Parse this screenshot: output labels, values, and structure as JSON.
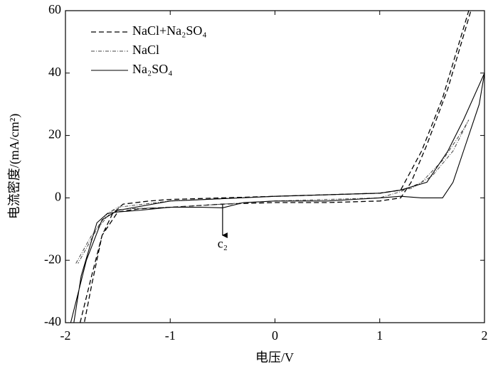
{
  "chart_data": {
    "type": "line",
    "xlabel": "电压/V",
    "ylabel": "电流密度/(mA/cm²)",
    "xlim": [
      -2,
      2
    ],
    "ylim": [
      -40,
      60
    ],
    "xticks": [
      -2,
      -1,
      0,
      1,
      2
    ],
    "yticks": [
      -40,
      -20,
      0,
      20,
      40,
      60
    ],
    "legend": "upper left",
    "annotations": [
      "c₂"
    ],
    "series": [
      {
        "name": "NaCl+Na₂SO₄",
        "color": "#000000",
        "linestyle": "dashed",
        "x": [
          -1.86,
          -1.75,
          -1.65,
          -1.55,
          -1.45,
          -1.2,
          -1,
          -0.5,
          0,
          0.5,
          1,
          1.2,
          1.4,
          1.6,
          1.85,
          1.87,
          1.65,
          1.45,
          1.3,
          1.2,
          1,
          0.5,
          0,
          -0.5,
          -1,
          -1.3,
          -1.5,
          -1.65,
          -1.75,
          -1.82
        ],
        "values": [
          -40,
          -25,
          -12,
          -5,
          -2,
          -1,
          -0.5,
          0,
          0.5,
          1,
          1.5,
          2.5,
          15,
          32,
          60,
          60,
          35,
          17,
          5,
          0,
          -1,
          -1.5,
          -1.5,
          -2,
          -3,
          -3.5,
          -4.5,
          -12,
          -28,
          -40
        ]
      },
      {
        "name": "NaCl",
        "color": "#444444",
        "linestyle": "dashdot",
        "x": [
          -1.9,
          -1.75,
          -1.6,
          -1.5,
          -1,
          0,
          1,
          1.3,
          1.5,
          1.7,
          1.85,
          1.8,
          1.6,
          1.4,
          1.2,
          1,
          0,
          -0.5,
          -1,
          -1.4,
          -1.55,
          -1.7,
          -1.88
        ],
        "values": [
          -21,
          -12,
          -5,
          -3,
          -1,
          0.5,
          1.5,
          3,
          7,
          15,
          25,
          22,
          12,
          5,
          2,
          0,
          -1,
          -2,
          -3,
          -3.5,
          -4,
          -10,
          -21
        ]
      },
      {
        "name": "Na₂SO₄",
        "color": "#000000",
        "linestyle": "solid",
        "x": [
          -1.95,
          -1.8,
          -1.65,
          -1.5,
          -1,
          0,
          1,
          1.2,
          1.45,
          1.65,
          1.8,
          2,
          1.95,
          1.8,
          1.7,
          1.6,
          1.4,
          1.2,
          1,
          0.5,
          0,
          -0.3,
          -0.5,
          -0.7,
          -1,
          -1.3,
          -1.5,
          -1.6,
          -1.7,
          -1.85,
          -1.92
        ],
        "values": [
          -40,
          -20,
          -7,
          -4,
          -1,
          0.5,
          1.5,
          2.5,
          5,
          15,
          25,
          40,
          30,
          15,
          5,
          0,
          0,
          0.5,
          0,
          -1,
          -1,
          -1.5,
          -3.2,
          -3,
          -3,
          -4,
          -4.5,
          -5,
          -8,
          -25,
          -40
        ]
      }
    ]
  }
}
